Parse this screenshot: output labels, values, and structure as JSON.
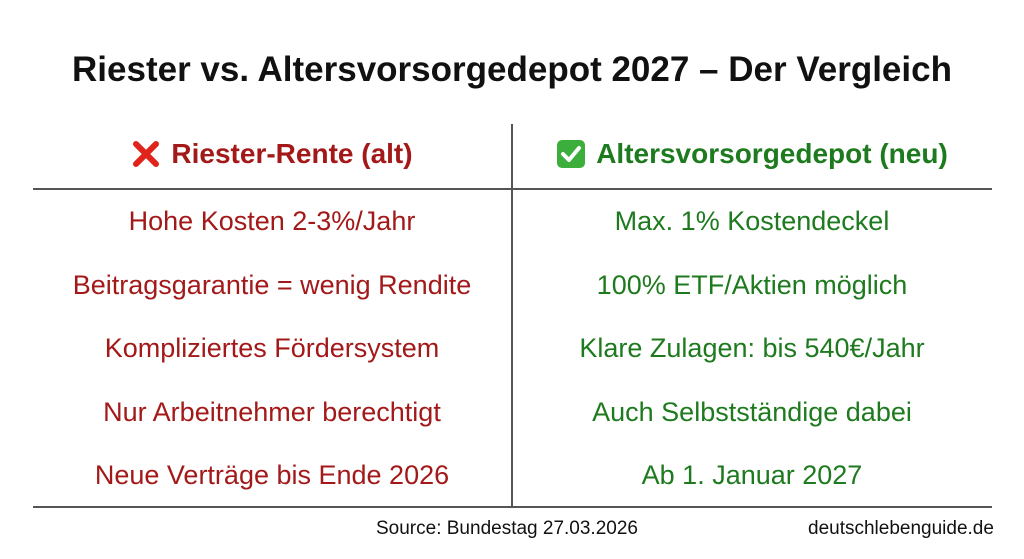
{
  "header": {
    "title": "Riester vs. Altersvorsorgedepot 2027 – Der Vergleich"
  },
  "table": {
    "columns": [
      "Riester-Rente (alt)",
      "Altersvorsorgedepot (neu)"
    ],
    "rows": [
      [
        "Hohe Kosten 2-3%/Jahr",
        "Max. 1% Kostendeckel"
      ],
      [
        "Beitragsgarantie = wenig Rendite",
        "100% ETF/Aktien möglich"
      ],
      [
        "Kompliziertes Fördersystem",
        "Klare Zulagen: bis 540€/Jahr"
      ],
      [
        "Nur Arbeitnehmer berechtigt",
        "Auch Selbstständige dabei"
      ],
      [
        "Neue Verträge bis Ende 2026",
        "Ab 1. Januar 2027"
      ]
    ]
  },
  "footer": {
    "source": "Source: Bundestag 27.03.2026",
    "site": "deutschlebenguide.de"
  }
}
